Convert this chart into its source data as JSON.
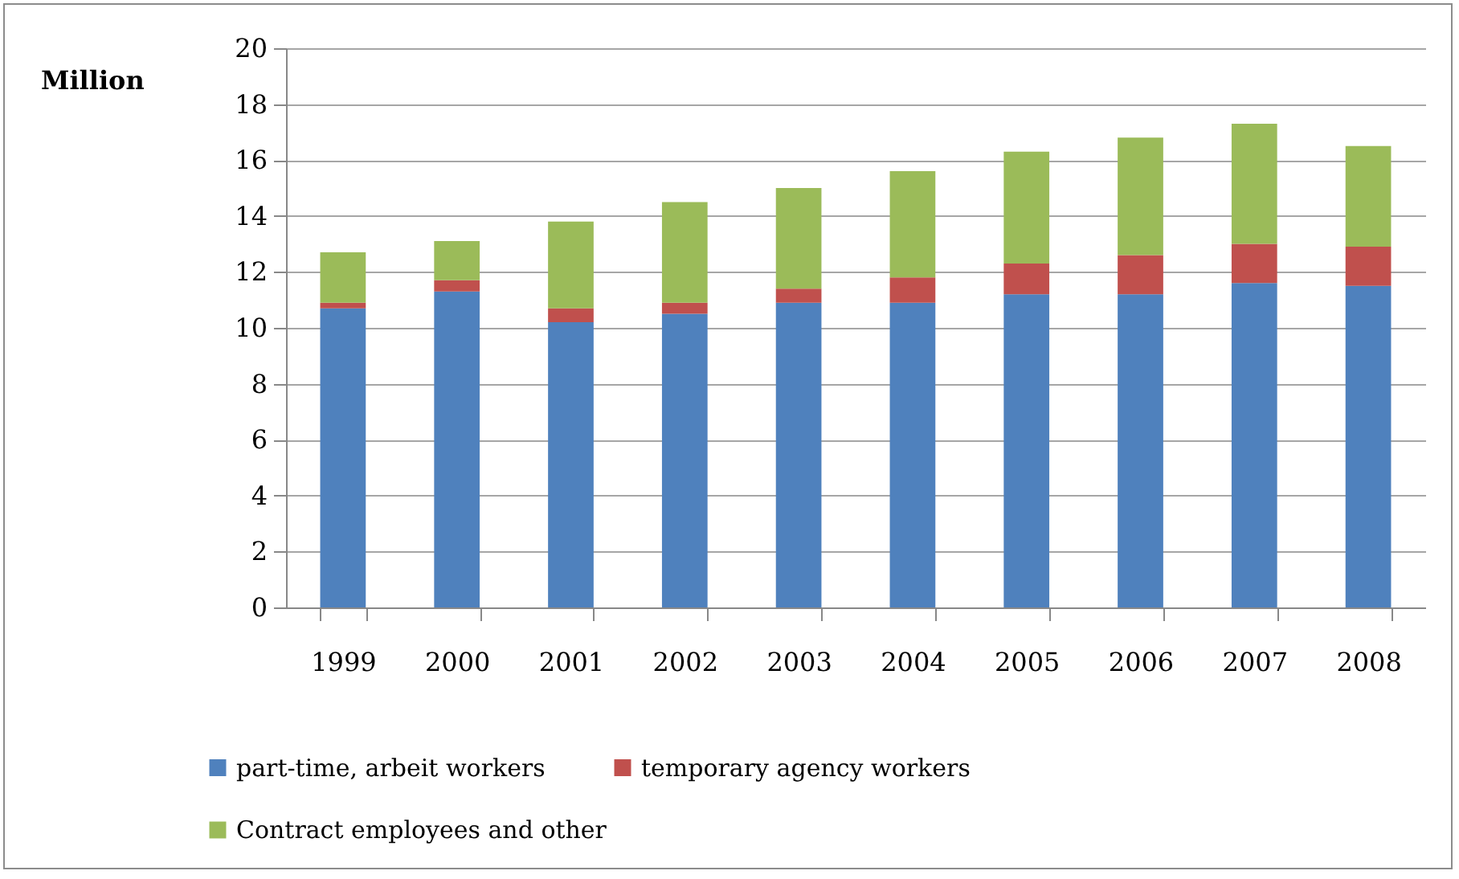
{
  "chart_data": {
    "type": "bar",
    "ylabel": "Million",
    "stacked": true,
    "categories": [
      "1999",
      "2000",
      "2001",
      "2002",
      "2003",
      "2004",
      "2005",
      "2006",
      "2007",
      "2008"
    ],
    "series": [
      {
        "name": "part-time, arbeit workers",
        "color": "#4f81bd",
        "values": [
          10.7,
          11.3,
          10.2,
          10.5,
          10.9,
          10.9,
          11.2,
          11.2,
          11.6,
          11.5
        ]
      },
      {
        "name": "temporary agency workers",
        "color": "#c0504d",
        "values": [
          0.2,
          0.4,
          0.5,
          0.4,
          0.5,
          0.9,
          1.1,
          1.4,
          1.4,
          1.4
        ]
      },
      {
        "name": "Contract employees and other",
        "color": "#9bbb59",
        "values": [
          1.8,
          1.4,
          3.1,
          3.6,
          3.6,
          3.8,
          4.0,
          4.2,
          4.3,
          3.6
        ]
      }
    ],
    "ylim": [
      0,
      20
    ],
    "yticks": [
      0,
      2,
      4,
      6,
      8,
      10,
      12,
      14,
      16,
      18,
      20
    ],
    "grid": "y",
    "legend": "bottom"
  }
}
